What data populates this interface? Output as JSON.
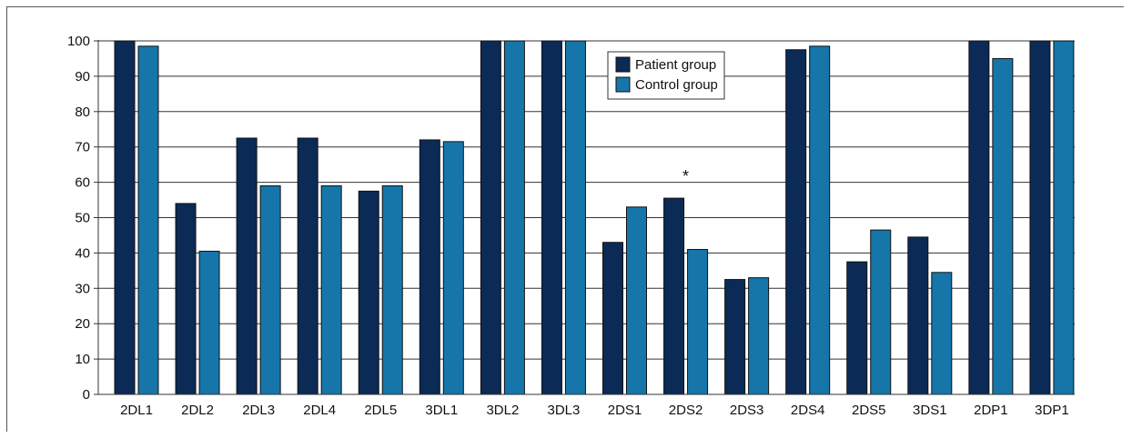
{
  "chart_data": {
    "type": "bar",
    "categories": [
      "2DL1",
      "2DL2",
      "2DL3",
      "2DL4",
      "2DL5",
      "3DL1",
      "3DL2",
      "3DL3",
      "2DS1",
      "2DS2",
      "2DS3",
      "2DS4",
      "2DS5",
      "3DS1",
      "2DP1",
      "3DP1"
    ],
    "series": [
      {
        "name": "Patient group",
        "color": "#0b2a55",
        "values": [
          100,
          54,
          72.5,
          72.5,
          57.5,
          72,
          100,
          100,
          43,
          55.5,
          32.5,
          97.5,
          37.5,
          44.5,
          100,
          100
        ]
      },
      {
        "name": "Control group",
        "color": "#1676aa",
        "values": [
          98.5,
          40.5,
          59,
          59,
          59,
          71.5,
          100,
          100,
          53,
          41,
          33,
          98.5,
          46.5,
          34.5,
          95,
          100
        ]
      }
    ],
    "ylim": [
      0,
      100
    ],
    "yticks": [
      0,
      10,
      20,
      30,
      40,
      50,
      60,
      70,
      80,
      90,
      100
    ],
    "grid": true,
    "legend_position": "top-center",
    "annotations": [
      {
        "category": "2DS2",
        "text": "*"
      }
    ],
    "title": "",
    "xlabel": "",
    "ylabel": ""
  }
}
